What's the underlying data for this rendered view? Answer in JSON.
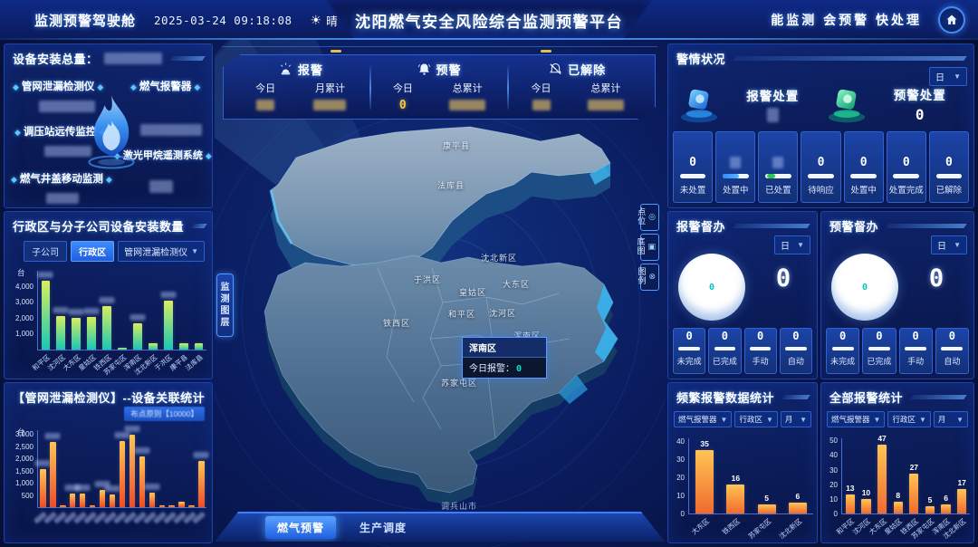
{
  "header": {
    "left_title": "监测预警驾驶舱",
    "datetime": "2025-03-24 09:18:08",
    "weather": "晴",
    "title": "沈阳燃气安全风险综合监测预警平台",
    "slogan": "能监测 会预警 快处理"
  },
  "device_total_panel": {
    "title": "设备安装总量：",
    "items": [
      {
        "label": "管网泄漏检测仪"
      },
      {
        "label": "燃气报警器"
      },
      {
        "label": "调压站远传监控"
      },
      {
        "label": "激光甲烷遥测系统"
      },
      {
        "label": "燃气井盖移动监测"
      }
    ]
  },
  "district_chart_panel": {
    "title": "行政区与分子公司设备安装数量",
    "toggle_buttons": [
      {
        "label": "子公司"
      },
      {
        "label": "行政区"
      }
    ],
    "active_toggle": "行政区",
    "dropdown_value": "管网泄漏检测仪"
  },
  "relation_chart_panel": {
    "title": "【管网泄漏检测仪】--设备关联统计",
    "badge": "布点原则【10000】"
  },
  "map": {
    "stats_groups": [
      {
        "icon": "siren-icon",
        "label": "报警",
        "cols": [
          {
            "label": "今日"
          },
          {
            "label": "月累计"
          }
        ]
      },
      {
        "icon": "bell-icon",
        "label": "预警",
        "cols": [
          {
            "label": "今日",
            "value": "0"
          },
          {
            "label": "总累计"
          }
        ]
      },
      {
        "icon": "bell-slash-icon",
        "label": "已解除",
        "cols": [
          {
            "label": "今日"
          },
          {
            "label": "总累计"
          }
        ]
      }
    ],
    "layer_tab": "监测图层",
    "side_buttons": [
      {
        "icon": "magnifier-icon",
        "label": "点位"
      },
      {
        "icon": "basemap-icon",
        "label": "底图"
      },
      {
        "icon": "legend-icon",
        "label": "图例"
      }
    ],
    "district_labels": [
      {
        "label": "康平县"
      },
      {
        "label": "法库县"
      },
      {
        "label": "沈北新区"
      },
      {
        "label": "于洪区"
      },
      {
        "label": "皇姑区"
      },
      {
        "label": "大东区"
      },
      {
        "label": "和平区"
      },
      {
        "label": "沈河区"
      },
      {
        "label": "铁西区"
      },
      {
        "label": "浑南区"
      },
      {
        "label": "苏家屯区"
      }
    ],
    "city_label": "调兵山市",
    "tooltip": {
      "title": "浑南区",
      "label": "今日报警：",
      "value": "0"
    },
    "bottom_tabs": [
      {
        "label": "燃气预警"
      },
      {
        "label": "生产调度"
      }
    ],
    "active_bottom_tab": "燃气预警"
  },
  "alarm_status_panel": {
    "title": "警情状况",
    "period": "日",
    "groups": [
      {
        "label": "报警处置",
        "icon": "alarm-device-icon"
      },
      {
        "label": "预警处置",
        "icon": "warning-device-icon",
        "value": "0"
      }
    ],
    "cards": [
      {
        "value": "0",
        "label": "未处置",
        "bar": "white"
      },
      {
        "label": "处置中",
        "bar": "blue",
        "value_redacted": true
      },
      {
        "label": "已处置",
        "bar": "green",
        "value_redacted": true
      },
      {
        "value": "0",
        "label": "待响应",
        "bar": "white"
      },
      {
        "value": "0",
        "label": "处置中",
        "bar": "white"
      },
      {
        "value": "0",
        "label": "处置完成",
        "bar": "white"
      },
      {
        "value": "0",
        "label": "已解除",
        "bar": "white"
      }
    ]
  },
  "supervision_panels": [
    {
      "title": "报警督办",
      "period": "日",
      "gauge_value": "0",
      "total_value": "0",
      "cards": [
        {
          "value": "0",
          "label": "未完成"
        },
        {
          "value": "0",
          "label": "已完成"
        },
        {
          "value": "0",
          "label": "手动"
        },
        {
          "value": "0",
          "label": "自动"
        }
      ]
    },
    {
      "title": "预警督办",
      "period": "日",
      "gauge_value": "0",
      "total_value": "0",
      "cards": [
        {
          "value": "0",
          "label": "未完成"
        },
        {
          "value": "0",
          "label": "已完成"
        },
        {
          "value": "0",
          "label": "手动"
        },
        {
          "value": "0",
          "label": "自动"
        }
      ]
    }
  ],
  "frequent_panel": {
    "title": "频繁报警数据统计",
    "filters": [
      {
        "value": "燃气报警器"
      },
      {
        "value": "行政区"
      },
      {
        "value": "月"
      }
    ]
  },
  "all_panel": {
    "title": "全部报警统计",
    "filters": [
      {
        "value": "燃气报警器"
      },
      {
        "value": "行政区"
      },
      {
        "value": "月"
      }
    ]
  },
  "chart_data": [
    {
      "id": "district_install",
      "type": "bar",
      "title": "行政区与分子公司设备安装数量",
      "ylabel": "台",
      "ylim": [
        0,
        5000
      ],
      "yticks": [
        1000,
        2000,
        3000,
        4000
      ],
      "ytick_format": "comma",
      "categories": [
        "和平区",
        "沈河区",
        "大东区",
        "皇姑区",
        "铁西区",
        "苏家屯区",
        "浑南区",
        "沈北新区",
        "于洪区",
        "康平县",
        "法库县"
      ],
      "values": [
        4340,
        2100,
        2000,
        2050,
        2700,
        60,
        1650,
        400,
        3050,
        400,
        380
      ],
      "colors": [
        "#d9ee5d",
        "#17c8b4"
      ],
      "value_labels": "redacted",
      "legend_position": "none",
      "grid": false
    },
    {
      "id": "relation_stats",
      "type": "bar",
      "title": "【管网泄漏检测仪】--设备关联统计",
      "ylabel": "台",
      "ylim": [
        0,
        3200
      ],
      "yticks": [
        500,
        1000,
        1500,
        2000,
        2500,
        3000
      ],
      "ytick_format": "comma",
      "categories_redacted": true,
      "values": [
        1560,
        2674,
        52,
        540,
        560,
        12,
        700,
        510,
        2719,
        2983,
        2088,
        600,
        19,
        34,
        208,
        74,
        1900
      ],
      "colors": [
        "#ffc554",
        "#ef4b28"
      ],
      "value_labels": "redacted",
      "legend_position": "none",
      "grid": false
    },
    {
      "id": "frequent_alarms",
      "type": "bar",
      "title": "频繁报警数据统计",
      "ylim": [
        0,
        42
      ],
      "yticks": [
        0,
        10,
        20,
        30,
        40
      ],
      "categories": [
        "大东区",
        "铁西区",
        "苏家屯区",
        "沈北新区"
      ],
      "values": [
        35,
        16,
        5,
        6
      ],
      "colors": [
        "#ffc554",
        "#f06a2d"
      ],
      "value_labels": "show",
      "legend_position": "none",
      "grid": false
    },
    {
      "id": "all_alarms",
      "type": "bar",
      "title": "全部报警统计",
      "ylim": [
        0,
        52
      ],
      "yticks": [
        0,
        10,
        20,
        30,
        40,
        50
      ],
      "categories": [
        "和平区",
        "沈河区",
        "大东区",
        "皇姑区",
        "铁西区",
        "苏家屯区",
        "浑南区",
        "沈北新区"
      ],
      "values": [
        13,
        10,
        47,
        8,
        27,
        5,
        6,
        17
      ],
      "colors": [
        "#ffc554",
        "#f06a2d"
      ],
      "value_labels": "show",
      "legend_position": "none",
      "grid": false
    }
  ],
  "colors": {
    "accent": "#2e8bff",
    "teal": "#00e5cf",
    "yellow": "#f5c842",
    "green_bar_top": "#d9ee5d",
    "green_bar_bottom": "#17c8b4",
    "orange_bar_top": "#ffc554",
    "orange_bar_bottom": "#ef4b28"
  }
}
